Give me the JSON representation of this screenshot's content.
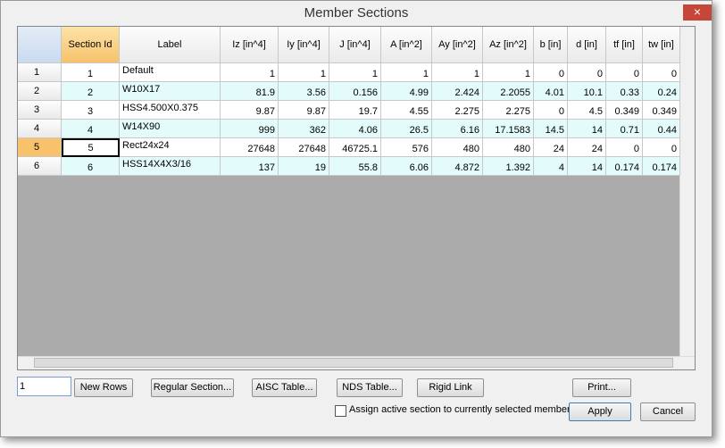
{
  "window": {
    "title": "Member Sections",
    "close": "×"
  },
  "table": {
    "columns": [
      "Section Id",
      "Label",
      "Iz [in^4]",
      "Iy [in^4]",
      "J [in^4]",
      "A [in^2]",
      "Ay [in^2]",
      "Az [in^2]",
      "b [in]",
      "d [in]",
      "tf [in]",
      "tw [in]"
    ],
    "rows": [
      {
        "header": "1",
        "cells": [
          "1",
          "Default",
          "1",
          "1",
          "1",
          "1",
          "1",
          "1",
          "0",
          "0",
          "0",
          "0"
        ]
      },
      {
        "header": "2",
        "cells": [
          "2",
          "W10X17",
          "81.9",
          "3.56",
          "0.156",
          "4.99",
          "2.424",
          "2.2055",
          "4.01",
          "10.1",
          "0.33",
          "0.24"
        ]
      },
      {
        "header": "3",
        "cells": [
          "3",
          "HSS4.500X0.375",
          "9.87",
          "9.87",
          "19.7",
          "4.55",
          "2.275",
          "2.275",
          "0",
          "4.5",
          "0.349",
          "0.349"
        ]
      },
      {
        "header": "4",
        "cells": [
          "4",
          "W14X90",
          "999",
          "362",
          "4.06",
          "26.5",
          "6.16",
          "17.1583",
          "14.5",
          "14",
          "0.71",
          "0.44"
        ]
      },
      {
        "header": "5",
        "cells": [
          "5",
          "Rect24x24",
          "27648",
          "27648",
          "46725.1",
          "576",
          "480",
          "480",
          "24",
          "24",
          "0",
          "0"
        ]
      },
      {
        "header": "6",
        "cells": [
          "6",
          "HSS14X4X3/16",
          "137",
          "19",
          "55.8",
          "6.06",
          "4.872",
          "1.392",
          "4",
          "14",
          "0.174",
          "0.174"
        ]
      }
    ]
  },
  "controls": {
    "input_value": "1",
    "buttons": [
      "New Rows",
      "Regular Section...",
      "AISC Table...",
      "NDS Table...",
      "Rigid Link",
      "Print..."
    ],
    "checkbox_label": "Assign active section to currently selected members",
    "apply": "Apply",
    "cancel": "Cancel"
  }
}
